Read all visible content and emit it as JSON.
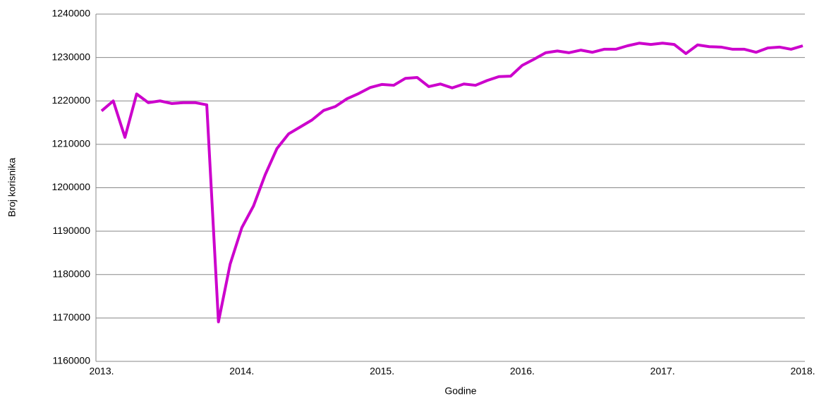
{
  "chart_data": {
    "type": "line",
    "x_label": "Godine",
    "y_label": "Broj korisnika",
    "categories": [
      "2013.",
      null,
      null,
      null,
      null,
      null,
      null,
      null,
      null,
      null,
      null,
      null,
      "2014.",
      null,
      null,
      null,
      null,
      null,
      null,
      null,
      null,
      null,
      null,
      null,
      "2015.",
      null,
      null,
      null,
      null,
      null,
      null,
      null,
      null,
      null,
      null,
      null,
      "2016.",
      null,
      null,
      null,
      null,
      null,
      null,
      null,
      null,
      null,
      null,
      null,
      "2017.",
      null,
      null,
      null,
      null,
      null,
      null,
      null,
      null,
      null,
      null,
      null,
      "2018."
    ],
    "series": [
      {
        "color": "#cc00cc",
        "values": [
          1217700,
          1220000,
          1211600,
          1221600,
          1219600,
          1220000,
          1219400,
          1219600,
          1219600,
          1219100,
          1169100,
          1182400,
          1190800,
          1195800,
          1203000,
          1209000,
          1212400,
          1214000,
          1215600,
          1217800,
          1218700,
          1220500,
          1221700,
          1223100,
          1223800,
          1223600,
          1225200,
          1225400,
          1223300,
          1223900,
          1223000,
          1223900,
          1223600,
          1224700,
          1225600,
          1225700,
          1228200,
          1229600,
          1231100,
          1231500,
          1231100,
          1231700,
          1231200,
          1231900,
          1231900,
          1232700,
          1233300,
          1233000,
          1233300,
          1233000,
          1230900,
          1232900,
          1232500,
          1232400,
          1231900,
          1231900,
          1231200,
          1232200,
          1232400,
          1231900,
          1232700
        ]
      }
    ],
    "ylim": [
      1160000,
      1240000
    ],
    "yticks": [
      1160000,
      1170000,
      1180000,
      1190000,
      1200000,
      1210000,
      1220000,
      1230000,
      1240000
    ],
    "grid": true
  }
}
